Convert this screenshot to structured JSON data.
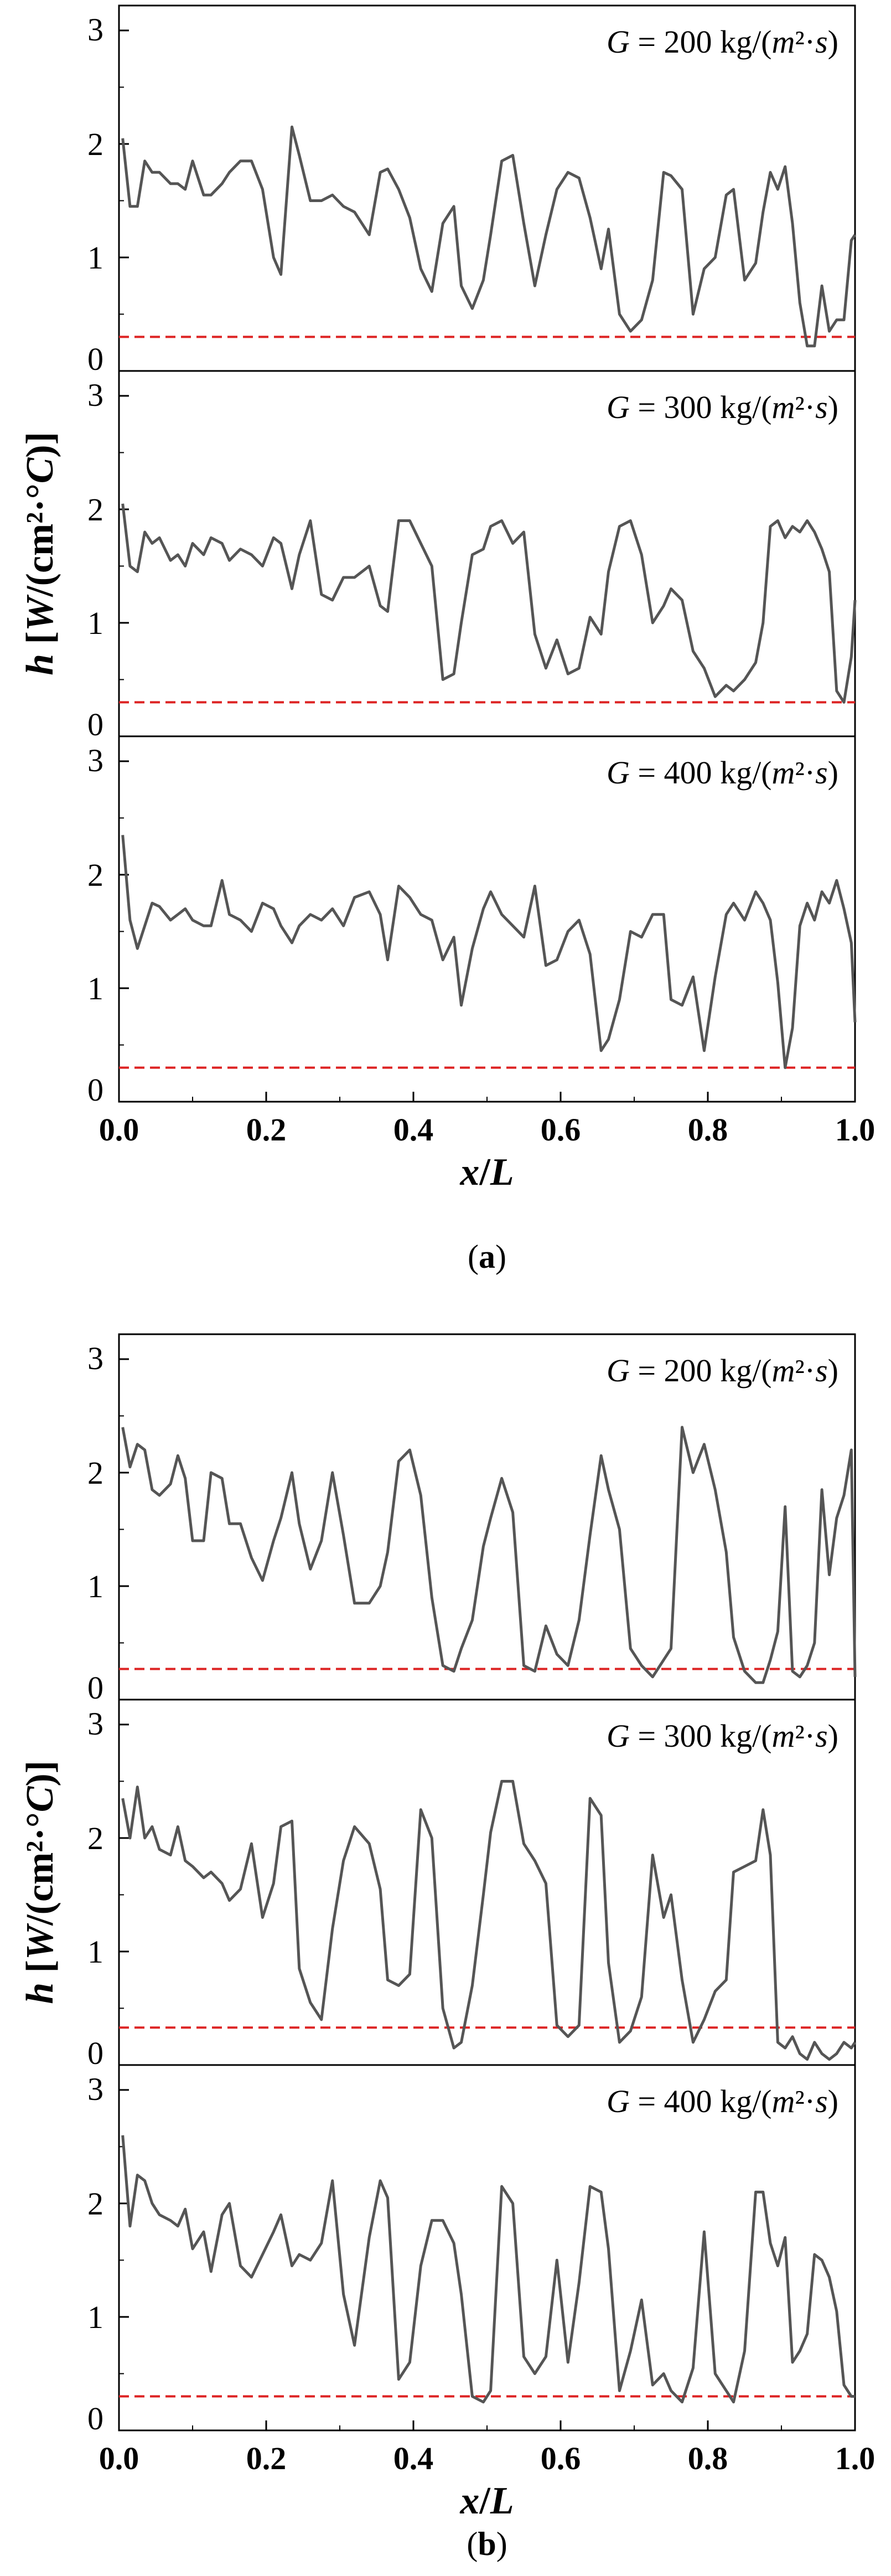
{
  "colors": {
    "series": "#555555",
    "threshold": "#dd2222",
    "axis": "#000000"
  },
  "chart_data": [
    {
      "type": "line",
      "figure_label": "(a)",
      "ylabel": "h [W/(cm²·°C)]",
      "xlabel": "x/L",
      "xlim": [
        0,
        1
      ],
      "xticks": [
        "0.0",
        "0.2",
        "0.4",
        "0.6",
        "0.8",
        "1.0"
      ],
      "panels": [
        {
          "label": "G = 200 kg/(m²·s)",
          "ylim": [
            0,
            3
          ],
          "yticks": [
            "0",
            "1",
            "2",
            "3"
          ],
          "threshold": 0.3,
          "x": [
            0.005,
            0.015,
            0.025,
            0.035,
            0.045,
            0.055,
            0.07,
            0.08,
            0.09,
            0.1,
            0.115,
            0.125,
            0.14,
            0.15,
            0.165,
            0.18,
            0.195,
            0.21,
            0.22,
            0.235,
            0.245,
            0.26,
            0.275,
            0.29,
            0.305,
            0.32,
            0.34,
            0.355,
            0.365,
            0.38,
            0.395,
            0.41,
            0.425,
            0.44,
            0.455,
            0.465,
            0.48,
            0.495,
            0.505,
            0.52,
            0.535,
            0.55,
            0.565,
            0.58,
            0.595,
            0.61,
            0.625,
            0.64,
            0.655,
            0.665,
            0.68,
            0.695,
            0.71,
            0.725,
            0.74,
            0.75,
            0.765,
            0.78,
            0.795,
            0.81,
            0.825,
            0.835,
            0.85,
            0.865,
            0.875,
            0.885,
            0.895,
            0.905,
            0.915,
            0.925,
            0.935,
            0.945,
            0.955,
            0.965,
            0.975,
            0.985,
            0.995,
            1.0
          ],
          "y": [
            2.05,
            1.45,
            1.45,
            1.85,
            1.75,
            1.75,
            1.65,
            1.65,
            1.6,
            1.85,
            1.55,
            1.55,
            1.65,
            1.75,
            1.85,
            1.85,
            1.6,
            1.0,
            0.85,
            2.15,
            1.9,
            1.5,
            1.5,
            1.55,
            1.45,
            1.4,
            1.2,
            1.75,
            1.78,
            1.6,
            1.35,
            0.9,
            0.7,
            1.3,
            1.45,
            0.75,
            0.55,
            0.8,
            1.2,
            1.85,
            1.9,
            1.3,
            0.75,
            1.2,
            1.6,
            1.75,
            1.7,
            1.35,
            0.9,
            1.25,
            0.5,
            0.35,
            0.45,
            0.8,
            1.75,
            1.72,
            1.6,
            0.5,
            0.9,
            1.0,
            1.55,
            1.6,
            0.8,
            0.95,
            1.4,
            1.75,
            1.6,
            1.8,
            1.3,
            0.6,
            0.22,
            0.22,
            0.75,
            0.35,
            0.45,
            0.45,
            1.15,
            1.2
          ]
        },
        {
          "label": "G = 300 kg/(m²·s)",
          "ylim": [
            0,
            3
          ],
          "yticks": [
            "0",
            "1",
            "2",
            "3"
          ],
          "threshold": 0.3,
          "x": [
            0.005,
            0.015,
            0.025,
            0.035,
            0.045,
            0.055,
            0.07,
            0.08,
            0.09,
            0.1,
            0.115,
            0.125,
            0.14,
            0.15,
            0.165,
            0.18,
            0.195,
            0.21,
            0.22,
            0.235,
            0.245,
            0.26,
            0.275,
            0.29,
            0.305,
            0.32,
            0.34,
            0.355,
            0.365,
            0.38,
            0.395,
            0.41,
            0.425,
            0.44,
            0.455,
            0.465,
            0.48,
            0.495,
            0.505,
            0.52,
            0.535,
            0.55,
            0.565,
            0.58,
            0.595,
            0.61,
            0.625,
            0.64,
            0.655,
            0.665,
            0.68,
            0.695,
            0.71,
            0.725,
            0.74,
            0.75,
            0.765,
            0.78,
            0.795,
            0.81,
            0.825,
            0.835,
            0.85,
            0.865,
            0.875,
            0.885,
            0.895,
            0.905,
            0.915,
            0.925,
            0.935,
            0.945,
            0.955,
            0.965,
            0.975,
            0.985,
            0.995,
            1.0
          ],
          "y": [
            2.05,
            1.5,
            1.45,
            1.8,
            1.7,
            1.75,
            1.55,
            1.6,
            1.5,
            1.7,
            1.6,
            1.75,
            1.7,
            1.55,
            1.65,
            1.6,
            1.5,
            1.75,
            1.7,
            1.3,
            1.6,
            1.9,
            1.25,
            1.2,
            1.4,
            1.4,
            1.5,
            1.15,
            1.1,
            1.9,
            1.9,
            1.7,
            1.5,
            0.5,
            0.55,
            1.0,
            1.6,
            1.65,
            1.85,
            1.9,
            1.7,
            1.8,
            0.9,
            0.6,
            0.85,
            0.55,
            0.6,
            1.05,
            0.9,
            1.45,
            1.85,
            1.9,
            1.6,
            1.0,
            1.15,
            1.3,
            1.2,
            0.75,
            0.6,
            0.35,
            0.45,
            0.4,
            0.5,
            0.65,
            1.0,
            1.85,
            1.9,
            1.75,
            1.85,
            1.8,
            1.9,
            1.8,
            1.65,
            1.45,
            0.4,
            0.3,
            0.7,
            1.2
          ]
        },
        {
          "label": "G = 400 kg/(m²·s)",
          "ylim": [
            0,
            3
          ],
          "yticks": [
            "0",
            "1",
            "2",
            "3"
          ],
          "threshold": 0.3,
          "x": [
            0.005,
            0.015,
            0.025,
            0.035,
            0.045,
            0.055,
            0.07,
            0.08,
            0.09,
            0.1,
            0.115,
            0.125,
            0.14,
            0.15,
            0.165,
            0.18,
            0.195,
            0.21,
            0.22,
            0.235,
            0.245,
            0.26,
            0.275,
            0.29,
            0.305,
            0.32,
            0.34,
            0.355,
            0.365,
            0.38,
            0.395,
            0.41,
            0.425,
            0.44,
            0.455,
            0.465,
            0.48,
            0.495,
            0.505,
            0.52,
            0.535,
            0.55,
            0.565,
            0.58,
            0.595,
            0.61,
            0.625,
            0.64,
            0.655,
            0.665,
            0.68,
            0.695,
            0.71,
            0.725,
            0.74,
            0.75,
            0.765,
            0.78,
            0.795,
            0.81,
            0.825,
            0.835,
            0.85,
            0.865,
            0.875,
            0.885,
            0.895,
            0.905,
            0.915,
            0.925,
            0.935,
            0.945,
            0.955,
            0.965,
            0.975,
            0.985,
            0.995,
            1.0
          ],
          "y": [
            2.35,
            1.6,
            1.35,
            1.55,
            1.75,
            1.72,
            1.6,
            1.65,
            1.7,
            1.6,
            1.55,
            1.55,
            1.95,
            1.65,
            1.6,
            1.5,
            1.75,
            1.7,
            1.55,
            1.4,
            1.55,
            1.65,
            1.6,
            1.7,
            1.55,
            1.8,
            1.85,
            1.65,
            1.25,
            1.9,
            1.8,
            1.65,
            1.6,
            1.25,
            1.45,
            0.85,
            1.35,
            1.7,
            1.85,
            1.65,
            1.55,
            1.45,
            1.9,
            1.2,
            1.25,
            1.5,
            1.6,
            1.3,
            0.45,
            0.55,
            0.9,
            1.5,
            1.45,
            1.65,
            1.65,
            0.9,
            0.85,
            1.1,
            0.45,
            1.1,
            1.65,
            1.75,
            1.6,
            1.85,
            1.75,
            1.6,
            1.05,
            0.3,
            0.65,
            1.55,
            1.75,
            1.6,
            1.85,
            1.75,
            1.95,
            1.7,
            1.4,
            0.7
          ]
        }
      ]
    },
    {
      "type": "line",
      "figure_label": "(b)",
      "ylabel": "h [W/(cm²·°C)]",
      "xlabel": "x/L",
      "xlim": [
        0,
        1
      ],
      "xticks": [
        "0.0",
        "0.2",
        "0.4",
        "0.6",
        "0.8",
        "1.0"
      ],
      "panels": [
        {
          "label": "G = 200 kg/(m²·s)",
          "ylim": [
            0,
            3
          ],
          "yticks": [
            "0",
            "1",
            "2",
            "3"
          ],
          "threshold": 0.27,
          "x": [
            0.005,
            0.015,
            0.025,
            0.035,
            0.045,
            0.055,
            0.07,
            0.08,
            0.09,
            0.1,
            0.115,
            0.125,
            0.14,
            0.15,
            0.165,
            0.18,
            0.195,
            0.21,
            0.22,
            0.235,
            0.245,
            0.26,
            0.275,
            0.29,
            0.305,
            0.32,
            0.34,
            0.355,
            0.365,
            0.38,
            0.395,
            0.41,
            0.425,
            0.44,
            0.455,
            0.465,
            0.48,
            0.495,
            0.505,
            0.52,
            0.535,
            0.55,
            0.565,
            0.58,
            0.595,
            0.61,
            0.625,
            0.64,
            0.655,
            0.665,
            0.68,
            0.695,
            0.71,
            0.725,
            0.74,
            0.75,
            0.765,
            0.78,
            0.795,
            0.81,
            0.825,
            0.835,
            0.85,
            0.865,
            0.875,
            0.885,
            0.895,
            0.905,
            0.915,
            0.925,
            0.935,
            0.945,
            0.955,
            0.965,
            0.975,
            0.985,
            0.995,
            1.0
          ],
          "y": [
            2.4,
            2.05,
            2.25,
            2.2,
            1.85,
            1.8,
            1.9,
            2.15,
            1.95,
            1.4,
            1.4,
            2.0,
            1.95,
            1.55,
            1.55,
            1.25,
            1.05,
            1.4,
            1.6,
            2.0,
            1.55,
            1.15,
            1.4,
            2.0,
            1.45,
            0.85,
            0.85,
            1.0,
            1.3,
            2.1,
            2.2,
            1.8,
            0.9,
            0.3,
            0.25,
            0.45,
            0.7,
            1.35,
            1.6,
            1.95,
            1.65,
            0.3,
            0.25,
            0.65,
            0.4,
            0.3,
            0.7,
            1.45,
            2.15,
            1.85,
            1.5,
            0.45,
            0.3,
            0.2,
            0.35,
            0.45,
            2.4,
            2.0,
            2.25,
            1.85,
            1.3,
            0.55,
            0.25,
            0.15,
            0.15,
            0.35,
            0.6,
            1.7,
            0.25,
            0.2,
            0.3,
            0.5,
            1.85,
            1.1,
            1.6,
            1.8,
            2.2,
            0.2
          ]
        },
        {
          "label": "G = 300 kg/(m²·s)",
          "ylim": [
            0,
            3
          ],
          "yticks": [
            "0",
            "1",
            "2",
            "3"
          ],
          "threshold": 0.33,
          "x": [
            0.005,
            0.015,
            0.025,
            0.035,
            0.045,
            0.055,
            0.07,
            0.08,
            0.09,
            0.1,
            0.115,
            0.125,
            0.14,
            0.15,
            0.165,
            0.18,
            0.195,
            0.21,
            0.22,
            0.235,
            0.245,
            0.26,
            0.275,
            0.29,
            0.305,
            0.32,
            0.34,
            0.355,
            0.365,
            0.38,
            0.395,
            0.41,
            0.425,
            0.44,
            0.455,
            0.465,
            0.48,
            0.495,
            0.505,
            0.52,
            0.535,
            0.55,
            0.565,
            0.58,
            0.595,
            0.61,
            0.625,
            0.64,
            0.655,
            0.665,
            0.68,
            0.695,
            0.71,
            0.725,
            0.74,
            0.75,
            0.765,
            0.78,
            0.795,
            0.81,
            0.825,
            0.835,
            0.85,
            0.865,
            0.875,
            0.885,
            0.895,
            0.905,
            0.915,
            0.925,
            0.935,
            0.945,
            0.955,
            0.965,
            0.975,
            0.985,
            0.995,
            1.0
          ],
          "y": [
            2.35,
            2.0,
            2.45,
            2.0,
            2.1,
            1.9,
            1.85,
            2.1,
            1.8,
            1.75,
            1.65,
            1.7,
            1.6,
            1.45,
            1.55,
            1.95,
            1.3,
            1.6,
            2.1,
            2.15,
            0.85,
            0.55,
            0.4,
            1.2,
            1.8,
            2.1,
            1.95,
            1.55,
            0.75,
            0.7,
            0.8,
            2.25,
            2.0,
            0.5,
            0.15,
            0.2,
            0.7,
            1.5,
            2.05,
            2.5,
            2.5,
            1.95,
            1.8,
            1.6,
            0.35,
            0.25,
            0.35,
            2.35,
            2.2,
            0.9,
            0.2,
            0.3,
            0.6,
            1.85,
            1.3,
            1.5,
            0.75,
            0.2,
            0.4,
            0.65,
            0.75,
            1.7,
            1.75,
            1.8,
            2.25,
            1.85,
            0.2,
            0.15,
            0.25,
            0.1,
            0.05,
            0.2,
            0.1,
            0.05,
            0.1,
            0.2,
            0.15,
            0.2
          ]
        },
        {
          "label": "G = 400 kg/(m²·s)",
          "ylim": [
            0,
            3
          ],
          "yticks": [
            "0",
            "1",
            "2",
            "3"
          ],
          "threshold": 0.3,
          "x": [
            0.005,
            0.015,
            0.025,
            0.035,
            0.045,
            0.055,
            0.07,
            0.08,
            0.09,
            0.1,
            0.115,
            0.125,
            0.14,
            0.15,
            0.165,
            0.18,
            0.195,
            0.21,
            0.22,
            0.235,
            0.245,
            0.26,
            0.275,
            0.29,
            0.305,
            0.32,
            0.34,
            0.355,
            0.365,
            0.38,
            0.395,
            0.41,
            0.425,
            0.44,
            0.455,
            0.465,
            0.48,
            0.495,
            0.505,
            0.52,
            0.535,
            0.55,
            0.565,
            0.58,
            0.595,
            0.61,
            0.625,
            0.64,
            0.655,
            0.665,
            0.68,
            0.695,
            0.71,
            0.725,
            0.74,
            0.75,
            0.765,
            0.78,
            0.795,
            0.81,
            0.825,
            0.835,
            0.85,
            0.865,
            0.875,
            0.885,
            0.895,
            0.905,
            0.915,
            0.925,
            0.935,
            0.945,
            0.955,
            0.965,
            0.975,
            0.985,
            0.995,
            1.0
          ],
          "y": [
            2.6,
            1.8,
            2.25,
            2.2,
            2.0,
            1.9,
            1.85,
            1.8,
            1.95,
            1.6,
            1.75,
            1.4,
            1.9,
            2.0,
            1.45,
            1.35,
            1.55,
            1.75,
            1.9,
            1.45,
            1.55,
            1.5,
            1.65,
            2.2,
            1.2,
            0.75,
            1.7,
            2.2,
            2.05,
            0.45,
            0.6,
            1.45,
            1.85,
            1.85,
            1.65,
            1.2,
            0.3,
            0.25,
            0.35,
            2.15,
            2.0,
            0.65,
            0.5,
            0.65,
            1.5,
            0.6,
            1.3,
            2.15,
            2.1,
            1.6,
            0.35,
            0.7,
            1.15,
            0.4,
            0.5,
            0.35,
            0.25,
            0.55,
            1.75,
            0.5,
            0.35,
            0.25,
            0.7,
            2.1,
            2.1,
            1.65,
            1.45,
            1.7,
            0.6,
            0.7,
            0.85,
            1.55,
            1.5,
            1.35,
            1.05,
            0.4,
            0.3,
            0.3
          ]
        }
      ]
    }
  ]
}
